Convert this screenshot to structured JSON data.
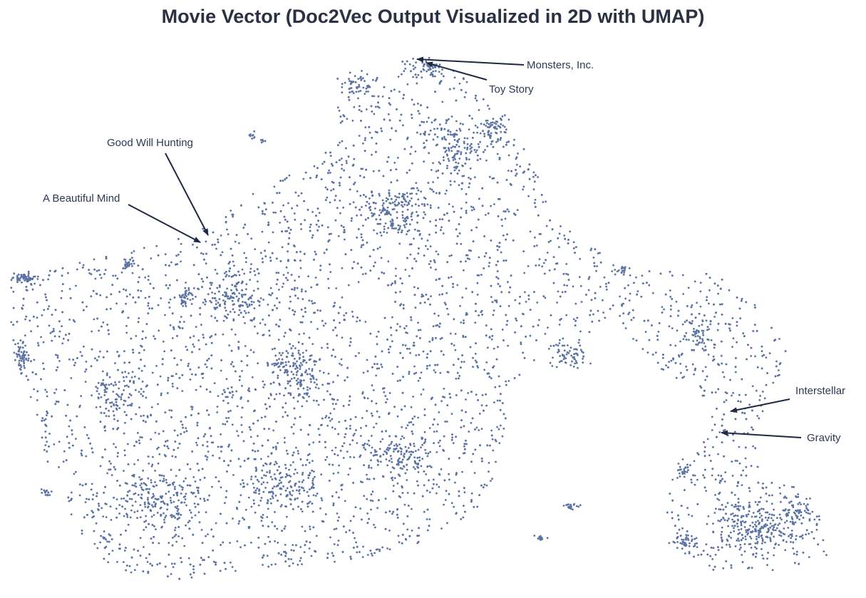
{
  "chart_data": {
    "type": "scatter",
    "title": "Movie Vector (Doc2Vec Output Visualized in 2D with UMAP)",
    "xlabel": "",
    "ylabel": "",
    "grid": false,
    "legend": "none",
    "point_color": "#5b73a4",
    "annotation_color": "#1e2a44",
    "annotations": [
      {
        "label": "Monsters, Inc."
      },
      {
        "label": "Toy Story"
      },
      {
        "label": "Good Will Hunting"
      },
      {
        "label": "A Beautiful Mind"
      },
      {
        "label": "Interstellar"
      },
      {
        "label": "Gravity"
      }
    ]
  }
}
